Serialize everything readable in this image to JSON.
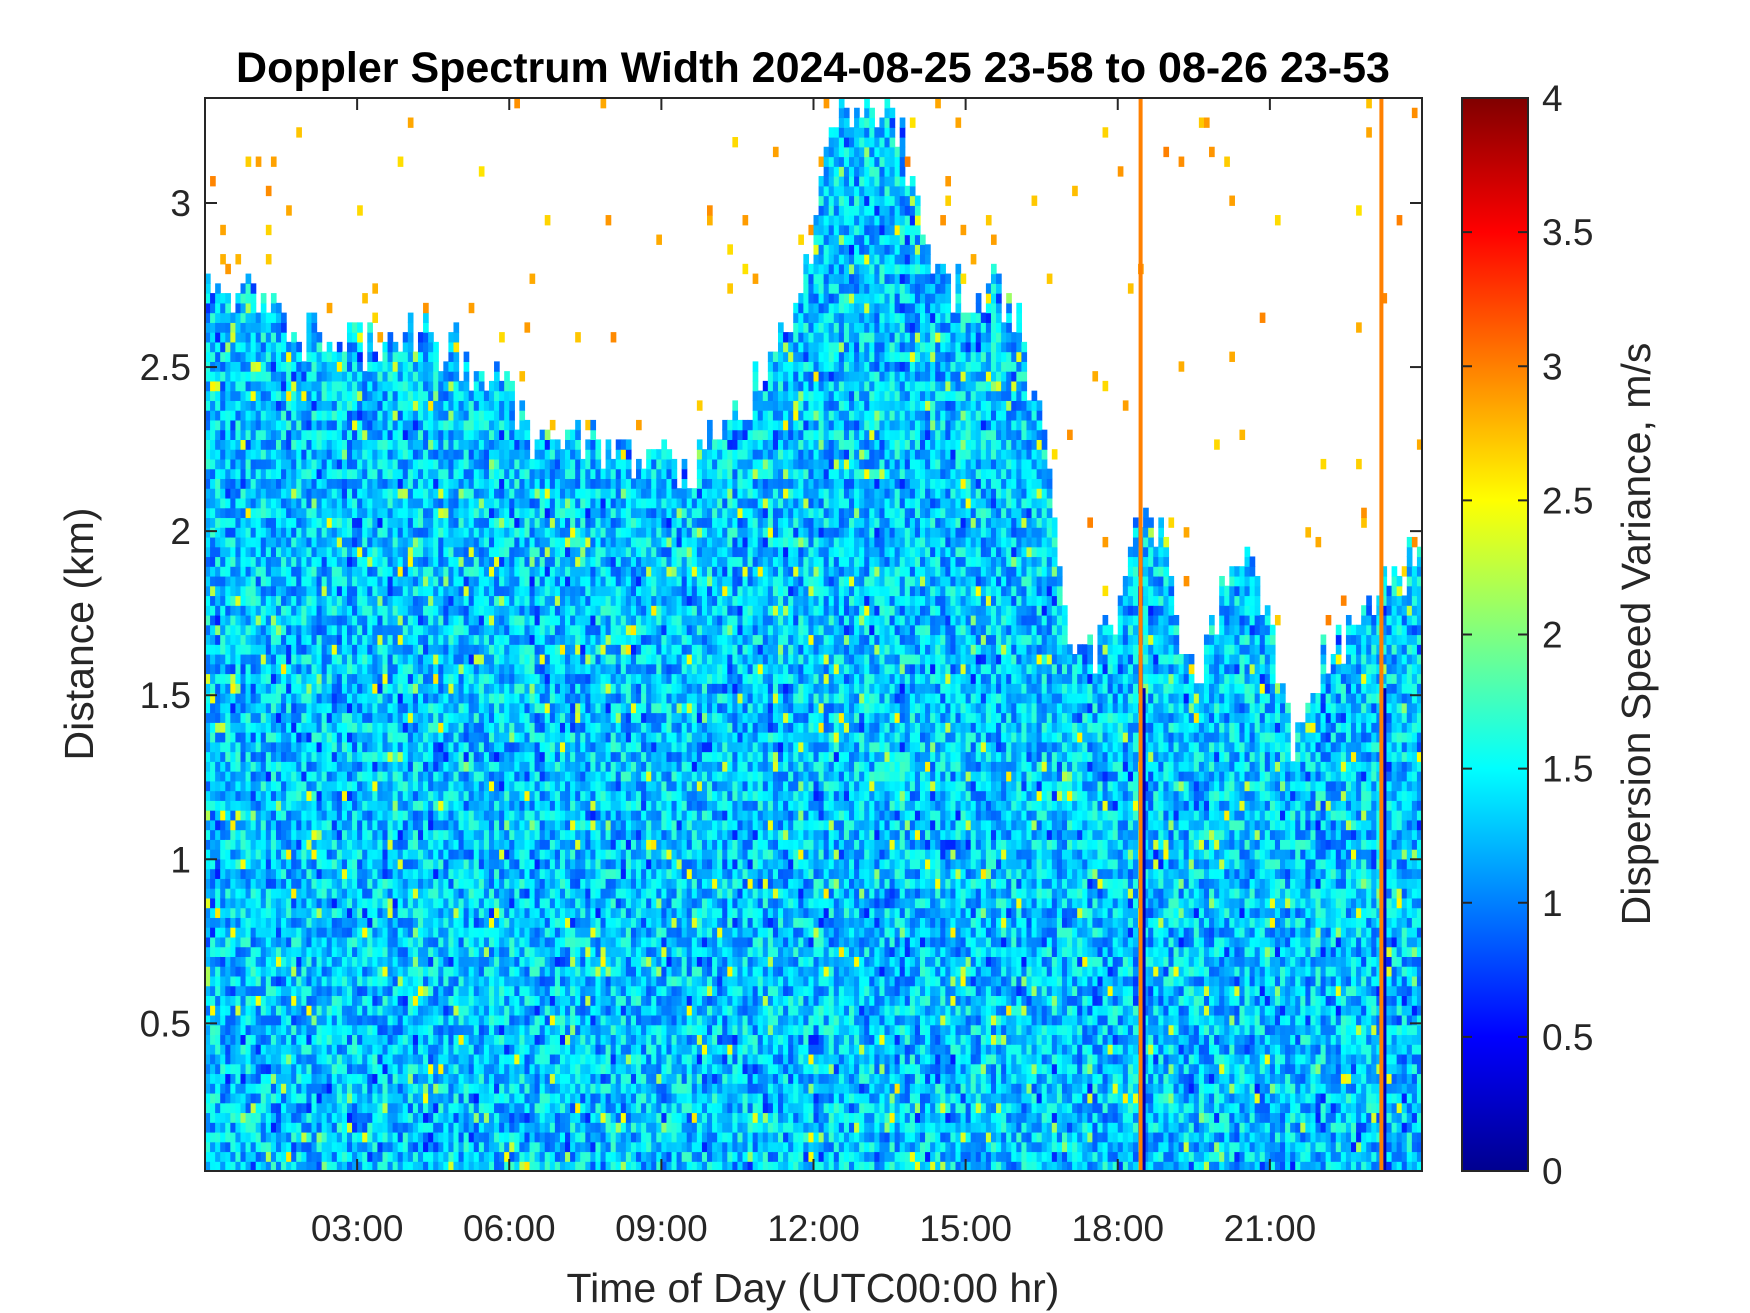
{
  "chart_data": {
    "type": "heatmap",
    "title": "Doppler Spectrum Width 2024-08-25 23-58 to 08-26 23-53",
    "xlabel": "Time of Day (UTC00:00 hr)",
    "ylabel": "Distance (km)",
    "x_ticks": [
      "03:00",
      "06:00",
      "09:00",
      "12:00",
      "15:00",
      "18:00",
      "21:00"
    ],
    "x_tick_hours": [
      3,
      6,
      9,
      12,
      15,
      18,
      21
    ],
    "xlim_hours": [
      0,
      24
    ],
    "y_ticks": [
      "0.5",
      "1",
      "1.5",
      "2",
      "2.5",
      "3"
    ],
    "y_tick_values": [
      0.5,
      1,
      1.5,
      2,
      2.5,
      3
    ],
    "ylim": [
      0.05,
      3.32
    ],
    "colorbar": {
      "label": "Dispersion Speed Variance, m/s",
      "ticks": [
        "0",
        "0.5",
        "1",
        "1.5",
        "2",
        "2.5",
        "3",
        "3.5",
        "4"
      ],
      "tick_values": [
        0,
        0.5,
        1,
        1.5,
        2,
        2.5,
        3,
        3.5,
        4
      ],
      "range": [
        0,
        4
      ],
      "colormap": "jet"
    },
    "signal_top_km": [
      [
        0.0,
        2.75
      ],
      [
        1.0,
        2.7
      ],
      [
        2.0,
        2.6
      ],
      [
        3.0,
        2.55
      ],
      [
        4.0,
        2.6
      ],
      [
        5.0,
        2.55
      ],
      [
        6.0,
        2.4
      ],
      [
        6.5,
        2.3
      ],
      [
        7.5,
        2.25
      ],
      [
        8.5,
        2.25
      ],
      [
        9.5,
        2.2
      ],
      [
        10.5,
        2.35
      ],
      [
        11.5,
        2.6
      ],
      [
        12.0,
        2.9
      ],
      [
        12.5,
        3.32
      ],
      [
        13.5,
        3.32
      ],
      [
        14.0,
        3.0
      ],
      [
        14.5,
        2.75
      ],
      [
        15.0,
        2.7
      ],
      [
        15.5,
        2.75
      ],
      [
        16.0,
        2.65
      ],
      [
        16.5,
        2.3
      ],
      [
        17.0,
        1.7
      ],
      [
        17.5,
        1.6
      ],
      [
        18.0,
        1.8
      ],
      [
        18.5,
        2.1
      ],
      [
        19.0,
        1.9
      ],
      [
        19.5,
        1.5
      ],
      [
        20.0,
        1.8
      ],
      [
        20.5,
        1.9
      ],
      [
        21.0,
        1.7
      ],
      [
        21.5,
        1.3
      ],
      [
        22.0,
        1.6
      ],
      [
        23.0,
        1.8
      ],
      [
        23.9,
        1.9
      ]
    ],
    "typical_value_ms": 1.3,
    "high_value_columns_hours": [
      18.45,
      23.2
    ]
  }
}
